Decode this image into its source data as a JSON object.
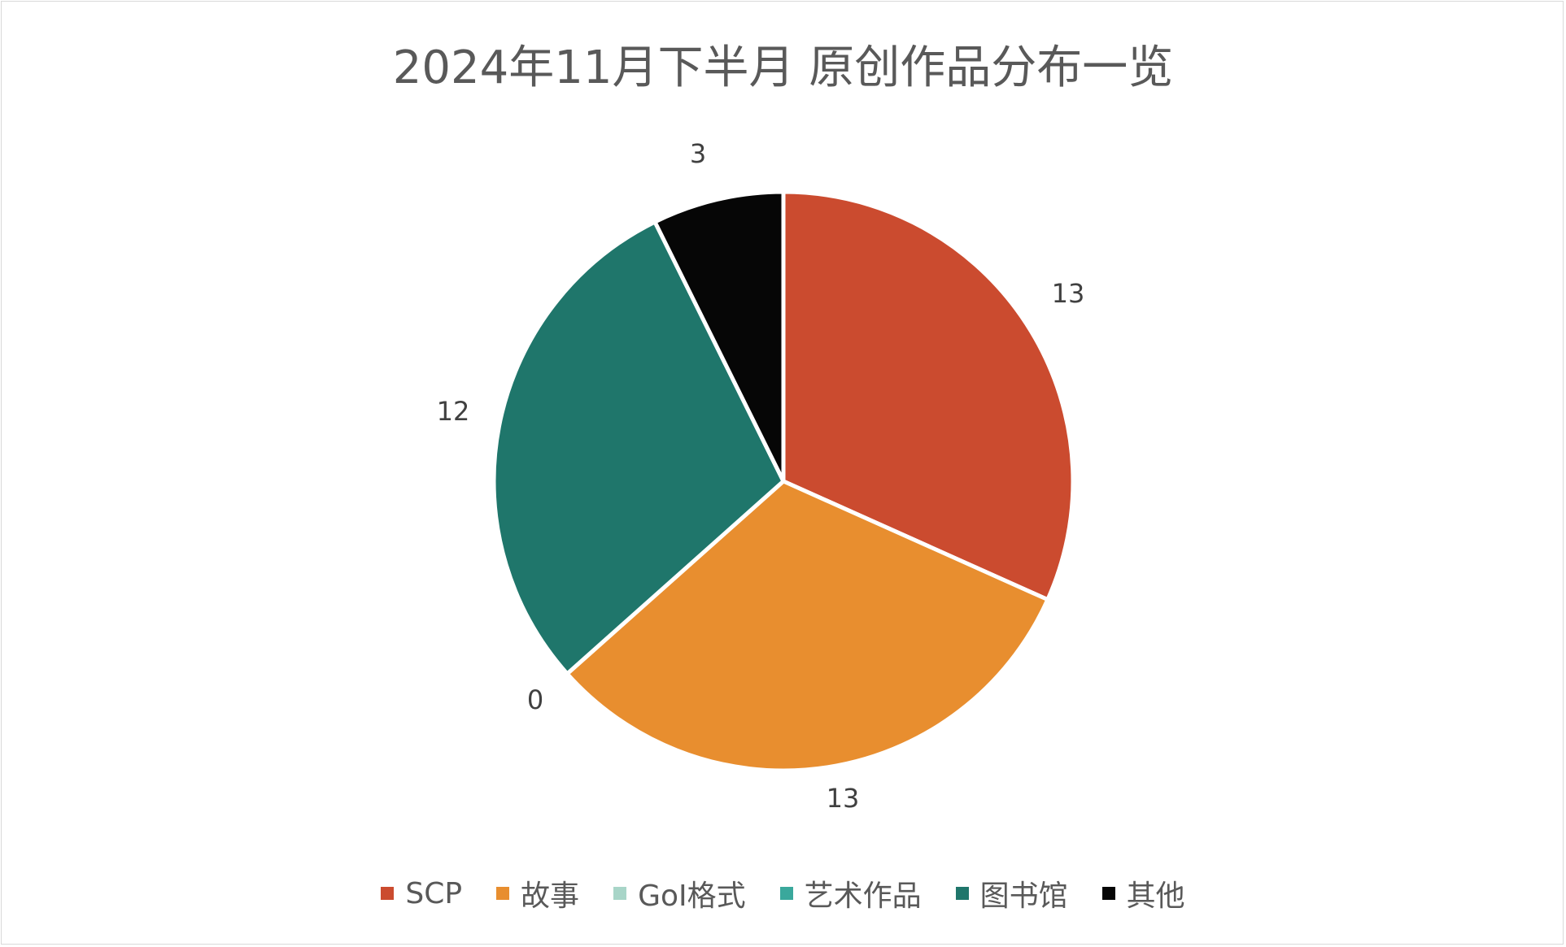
{
  "chart_data": {
    "type": "pie",
    "title": "2024年11月下半月 原创作品分布一览",
    "categories": [
      "SCP",
      "故事",
      "GoI格式",
      "艺术作品",
      "图书馆",
      "其他"
    ],
    "values": [
      13,
      13,
      0,
      0,
      12,
      3
    ],
    "colors": [
      "#cb4b2f",
      "#e88e2f",
      "#a8d5c8",
      "#3aa89c",
      "#1f766b",
      "#060606"
    ],
    "data_labels": [
      "13",
      "13",
      "0",
      "",
      "12",
      "3"
    ],
    "legend_position": "bottom"
  }
}
